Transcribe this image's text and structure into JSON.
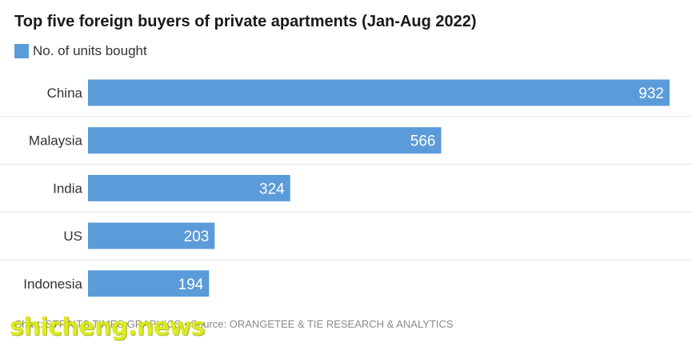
{
  "chart_data": {
    "type": "bar",
    "orientation": "horizontal",
    "title": "Top five foreign buyers of private apartments (Jan-Aug 2022)",
    "categories": [
      "China",
      "Malaysia",
      "India",
      "US",
      "Indonesia"
    ],
    "series": [
      {
        "name": "No. of units bought",
        "values": [
          932,
          566,
          324,
          203,
          194
        ]
      }
    ],
    "xlim": [
      0,
      932
    ],
    "grid": false,
    "legend": "top-left",
    "bar_color": "#5b9bd9"
  },
  "footer": {
    "credit": "Chart: STRAITS TIMES GRAPHICS • Source: ORANGETEE & TIE RESEARCH & ANALYTICS"
  },
  "watermark": {
    "text": "shicheng.news"
  },
  "colors": {
    "separator": "#e6e6e6",
    "label_text": "#333333",
    "value_text": "#ffffff"
  }
}
